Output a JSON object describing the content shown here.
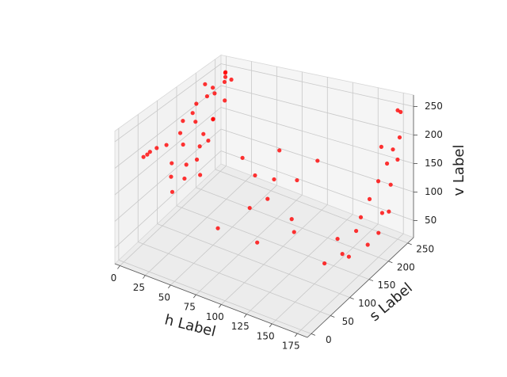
{
  "chart_data": {
    "type": "scatter3d",
    "xlabel": "h Label",
    "ylabel": "s Label",
    "zlabel": "v Label",
    "xlabel_color": "#ff0000",
    "ylabel_color": "#008000",
    "zlabel_color": "#0000ff",
    "color": "#ff0000",
    "grid": true,
    "xlim": [
      -5,
      185
    ],
    "ylim": [
      -10,
      265
    ],
    "zlim": [
      20,
      270
    ],
    "xticks": [
      0,
      25,
      50,
      75,
      100,
      125,
      150,
      175
    ],
    "yticks": [
      0,
      50,
      100,
      150,
      200,
      250
    ],
    "zticks": [
      50,
      100,
      150,
      200,
      250
    ],
    "x": [
      3,
      6,
      2,
      8,
      4,
      10,
      5,
      7,
      3,
      6,
      4,
      8,
      5,
      9,
      2,
      12,
      10,
      14,
      11,
      8,
      15,
      6,
      12,
      3,
      16,
      13,
      20,
      18,
      25,
      22,
      9,
      4,
      7,
      60,
      80,
      95,
      100,
      110,
      90,
      120,
      70,
      105,
      130,
      85,
      115,
      175,
      176,
      174,
      178,
      173,
      177,
      175,
      179,
      172,
      176,
      174,
      178,
      175,
      176,
      170,
      160,
      177,
      178,
      150,
      165
    ],
    "y": [
      60,
      45,
      80,
      30,
      100,
      120,
      140,
      160,
      180,
      200,
      220,
      240,
      250,
      255,
      230,
      200,
      180,
      160,
      190,
      210,
      150,
      170,
      230,
      255,
      120,
      90,
      70,
      110,
      60,
      140,
      130,
      200,
      245,
      150,
      130,
      140,
      110,
      160,
      90,
      120,
      60,
      70,
      100,
      180,
      200,
      200,
      220,
      180,
      230,
      160,
      250,
      210,
      190,
      240,
      170,
      230,
      200,
      250,
      140,
      120,
      100,
      245,
      250,
      160,
      150
    ],
    "z": [
      195,
      200,
      190,
      205,
      185,
      200,
      210,
      215,
      220,
      225,
      230,
      232,
      235,
      228,
      210,
      180,
      160,
      150,
      140,
      170,
      130,
      190,
      200,
      240,
      140,
      160,
      150,
      120,
      130,
      110,
      170,
      250,
      250,
      160,
      150,
      145,
      130,
      140,
      120,
      100,
      90,
      80,
      95,
      170,
      155,
      150,
      170,
      130,
      190,
      110,
      200,
      90,
      70,
      120,
      60,
      80,
      210,
      160,
      100,
      70,
      60,
      250,
      245,
      60,
      45
    ]
  }
}
